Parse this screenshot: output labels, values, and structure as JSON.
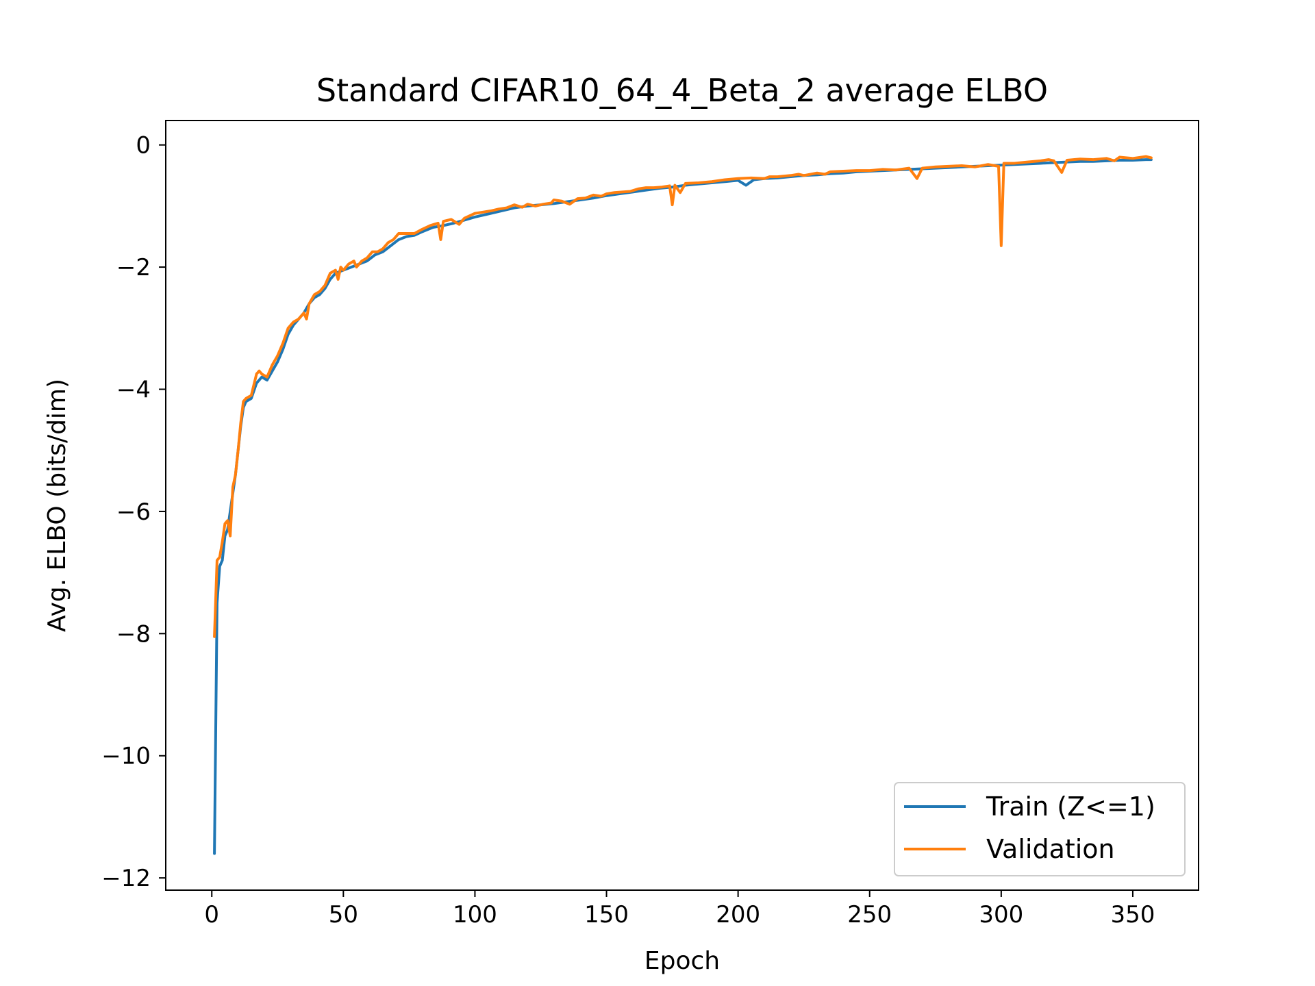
{
  "chart_data": {
    "type": "line",
    "title": "Standard CIFAR10_64_4_Beta_2 average ELBO",
    "xlabel": "Epoch",
    "ylabel": "Avg. ELBO (bits/dim)",
    "xlim": [
      -17.5,
      375
    ],
    "ylim": [
      -12.2,
      0.4
    ],
    "xticks": [
      0,
      50,
      100,
      150,
      200,
      250,
      300,
      350
    ],
    "yticks": [
      0,
      -2,
      -4,
      -6,
      -8,
      -10,
      -12
    ],
    "ytick_labels": [
      "0",
      "−2",
      "−4",
      "−6",
      "−8",
      "−10",
      "−12"
    ],
    "grid": false,
    "legend": "lower-right",
    "series": [
      {
        "name": "Train (Z<=1)",
        "color": "#1f77b4",
        "points": [
          [
            1,
            -11.6
          ],
          [
            2,
            -7.5
          ],
          [
            3,
            -6.9
          ],
          [
            4,
            -6.8
          ],
          [
            5,
            -6.4
          ],
          [
            6,
            -6.3
          ],
          [
            7,
            -6.0
          ],
          [
            8,
            -5.7
          ],
          [
            9,
            -5.4
          ],
          [
            10,
            -5.0
          ],
          [
            11,
            -4.6
          ],
          [
            12,
            -4.3
          ],
          [
            13,
            -4.2
          ],
          [
            15,
            -4.15
          ],
          [
            17,
            -3.9
          ],
          [
            19,
            -3.8
          ],
          [
            21,
            -3.85
          ],
          [
            23,
            -3.7
          ],
          [
            25,
            -3.55
          ],
          [
            27,
            -3.35
          ],
          [
            29,
            -3.1
          ],
          [
            31,
            -2.95
          ],
          [
            33,
            -2.85
          ],
          [
            35,
            -2.75
          ],
          [
            37,
            -2.6
          ],
          [
            39,
            -2.5
          ],
          [
            41,
            -2.45
          ],
          [
            43,
            -2.35
          ],
          [
            45,
            -2.2
          ],
          [
            47,
            -2.1
          ],
          [
            50,
            -2.05
          ],
          [
            53,
            -2.0
          ],
          [
            56,
            -1.95
          ],
          [
            59,
            -1.9
          ],
          [
            62,
            -1.8
          ],
          [
            65,
            -1.75
          ],
          [
            68,
            -1.65
          ],
          [
            71,
            -1.55
          ],
          [
            74,
            -1.5
          ],
          [
            77,
            -1.48
          ],
          [
            80,
            -1.42
          ],
          [
            84,
            -1.35
          ],
          [
            88,
            -1.32
          ],
          [
            92,
            -1.28
          ],
          [
            96,
            -1.23
          ],
          [
            100,
            -1.18
          ],
          [
            105,
            -1.13
          ],
          [
            110,
            -1.08
          ],
          [
            115,
            -1.03
          ],
          [
            120,
            -1.0
          ],
          [
            125,
            -0.98
          ],
          [
            130,
            -0.96
          ],
          [
            135,
            -0.93
          ],
          [
            140,
            -0.9
          ],
          [
            145,
            -0.87
          ],
          [
            150,
            -0.83
          ],
          [
            155,
            -0.8
          ],
          [
            160,
            -0.77
          ],
          [
            165,
            -0.74
          ],
          [
            170,
            -0.71
          ],
          [
            175,
            -0.69
          ],
          [
            180,
            -0.66
          ],
          [
            185,
            -0.64
          ],
          [
            190,
            -0.62
          ],
          [
            195,
            -0.6
          ],
          [
            200,
            -0.58
          ],
          [
            203,
            -0.66
          ],
          [
            206,
            -0.57
          ],
          [
            210,
            -0.55
          ],
          [
            215,
            -0.54
          ],
          [
            220,
            -0.52
          ],
          [
            225,
            -0.5
          ],
          [
            230,
            -0.49
          ],
          [
            235,
            -0.47
          ],
          [
            240,
            -0.46
          ],
          [
            245,
            -0.44
          ],
          [
            250,
            -0.43
          ],
          [
            255,
            -0.42
          ],
          [
            260,
            -0.41
          ],
          [
            265,
            -0.4
          ],
          [
            270,
            -0.39
          ],
          [
            275,
            -0.38
          ],
          [
            280,
            -0.37
          ],
          [
            285,
            -0.36
          ],
          [
            290,
            -0.35
          ],
          [
            295,
            -0.34
          ],
          [
            300,
            -0.33
          ],
          [
            305,
            -0.32
          ],
          [
            310,
            -0.31
          ],
          [
            315,
            -0.3
          ],
          [
            320,
            -0.29
          ],
          [
            325,
            -0.28
          ],
          [
            330,
            -0.27
          ],
          [
            335,
            -0.27
          ],
          [
            340,
            -0.26
          ],
          [
            345,
            -0.25
          ],
          [
            350,
            -0.25
          ],
          [
            355,
            -0.24
          ],
          [
            357,
            -0.24
          ]
        ]
      },
      {
        "name": "Validation",
        "color": "#ff7f0e",
        "points": [
          [
            1,
            -8.05
          ],
          [
            2,
            -6.8
          ],
          [
            3,
            -6.75
          ],
          [
            4,
            -6.5
          ],
          [
            5,
            -6.2
          ],
          [
            6,
            -6.15
          ],
          [
            7,
            -6.4
          ],
          [
            8,
            -5.6
          ],
          [
            9,
            -5.4
          ],
          [
            10,
            -5.0
          ],
          [
            11,
            -4.55
          ],
          [
            12,
            -4.2
          ],
          [
            13,
            -4.15
          ],
          [
            15,
            -4.1
          ],
          [
            17,
            -3.75
          ],
          [
            18,
            -3.7
          ],
          [
            19,
            -3.75
          ],
          [
            21,
            -3.8
          ],
          [
            23,
            -3.6
          ],
          [
            25,
            -3.45
          ],
          [
            27,
            -3.25
          ],
          [
            29,
            -3.0
          ],
          [
            31,
            -2.9
          ],
          [
            33,
            -2.85
          ],
          [
            34,
            -2.8
          ],
          [
            35,
            -2.75
          ],
          [
            36,
            -2.85
          ],
          [
            37,
            -2.6
          ],
          [
            39,
            -2.45
          ],
          [
            41,
            -2.4
          ],
          [
            43,
            -2.3
          ],
          [
            45,
            -2.1
          ],
          [
            47,
            -2.05
          ],
          [
            48,
            -2.2
          ],
          [
            49,
            -2.0
          ],
          [
            50,
            -2.05
          ],
          [
            52,
            -1.95
          ],
          [
            54,
            -1.9
          ],
          [
            55,
            -2.0
          ],
          [
            57,
            -1.9
          ],
          [
            59,
            -1.85
          ],
          [
            61,
            -1.75
          ],
          [
            63,
            -1.75
          ],
          [
            65,
            -1.7
          ],
          [
            67,
            -1.6
          ],
          [
            69,
            -1.55
          ],
          [
            71,
            -1.45
          ],
          [
            74,
            -1.45
          ],
          [
            77,
            -1.45
          ],
          [
            80,
            -1.38
          ],
          [
            83,
            -1.32
          ],
          [
            86,
            -1.28
          ],
          [
            87,
            -1.55
          ],
          [
            88,
            -1.25
          ],
          [
            91,
            -1.22
          ],
          [
            94,
            -1.3
          ],
          [
            96,
            -1.2
          ],
          [
            100,
            -1.12
          ],
          [
            103,
            -1.1
          ],
          [
            106,
            -1.08
          ],
          [
            109,
            -1.05
          ],
          [
            112,
            -1.03
          ],
          [
            115,
            -0.98
          ],
          [
            118,
            -1.02
          ],
          [
            120,
            -0.97
          ],
          [
            123,
            -1.0
          ],
          [
            126,
            -0.97
          ],
          [
            129,
            -0.95
          ],
          [
            130,
            -0.9
          ],
          [
            133,
            -0.92
          ],
          [
            136,
            -0.97
          ],
          [
            139,
            -0.88
          ],
          [
            142,
            -0.87
          ],
          [
            145,
            -0.82
          ],
          [
            148,
            -0.84
          ],
          [
            150,
            -0.8
          ],
          [
            153,
            -0.78
          ],
          [
            156,
            -0.77
          ],
          [
            159,
            -0.76
          ],
          [
            162,
            -0.72
          ],
          [
            165,
            -0.7
          ],
          [
            168,
            -0.7
          ],
          [
            171,
            -0.69
          ],
          [
            174,
            -0.67
          ],
          [
            175,
            -0.98
          ],
          [
            176,
            -0.66
          ],
          [
            178,
            -0.78
          ],
          [
            180,
            -0.63
          ],
          [
            185,
            -0.62
          ],
          [
            190,
            -0.6
          ],
          [
            195,
            -0.57
          ],
          [
            200,
            -0.55
          ],
          [
            205,
            -0.54
          ],
          [
            210,
            -0.55
          ],
          [
            212,
            -0.52
          ],
          [
            215,
            -0.52
          ],
          [
            220,
            -0.5
          ],
          [
            223,
            -0.48
          ],
          [
            225,
            -0.5
          ],
          [
            230,
            -0.46
          ],
          [
            233,
            -0.48
          ],
          [
            235,
            -0.44
          ],
          [
            240,
            -0.43
          ],
          [
            245,
            -0.42
          ],
          [
            250,
            -0.42
          ],
          [
            255,
            -0.4
          ],
          [
            260,
            -0.41
          ],
          [
            265,
            -0.38
          ],
          [
            268,
            -0.55
          ],
          [
            270,
            -0.38
          ],
          [
            275,
            -0.36
          ],
          [
            280,
            -0.35
          ],
          [
            285,
            -0.34
          ],
          [
            290,
            -0.36
          ],
          [
            295,
            -0.32
          ],
          [
            299,
            -0.35
          ],
          [
            300,
            -1.65
          ],
          [
            301,
            -0.3
          ],
          [
            305,
            -0.3
          ],
          [
            310,
            -0.28
          ],
          [
            315,
            -0.26
          ],
          [
            318,
            -0.24
          ],
          [
            320,
            -0.26
          ],
          [
            323,
            -0.45
          ],
          [
            325,
            -0.25
          ],
          [
            330,
            -0.23
          ],
          [
            335,
            -0.24
          ],
          [
            340,
            -0.22
          ],
          [
            343,
            -0.26
          ],
          [
            345,
            -0.2
          ],
          [
            350,
            -0.22
          ],
          [
            355,
            -0.19
          ],
          [
            357,
            -0.21
          ]
        ]
      }
    ]
  }
}
